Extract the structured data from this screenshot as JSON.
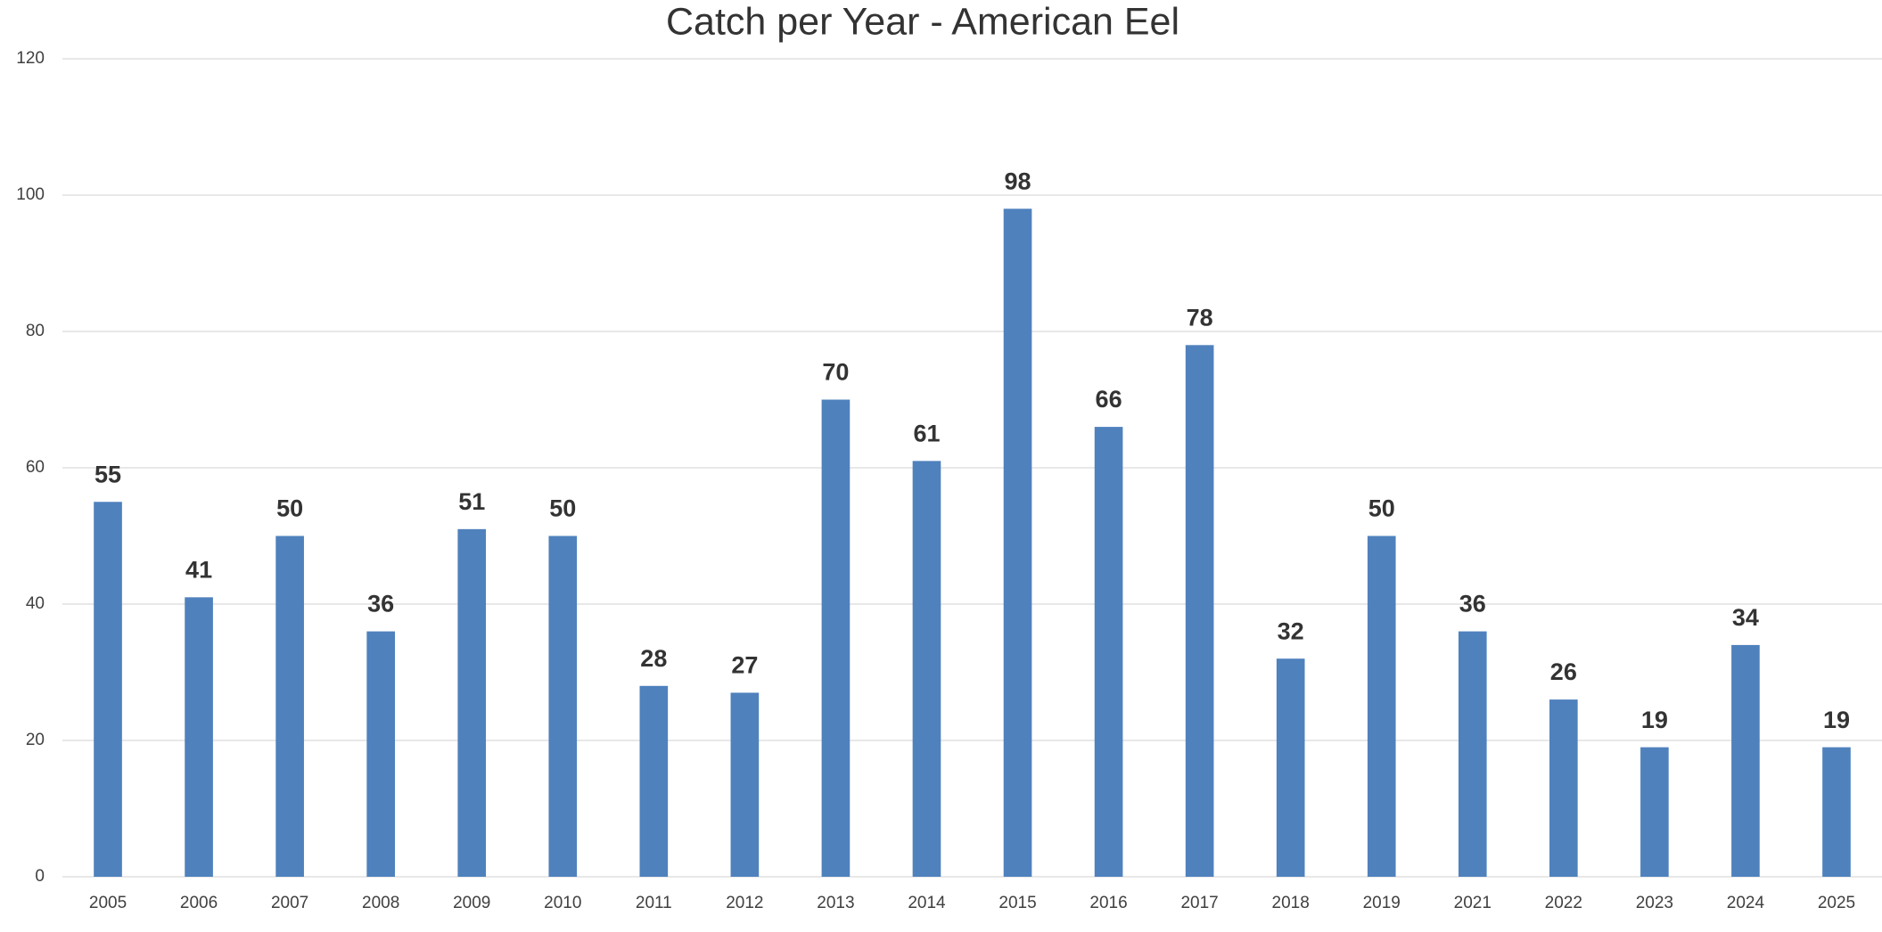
{
  "chart_data": {
    "type": "bar",
    "title": "Catch per Year - American Eel",
    "categories": [
      "2005",
      "2006",
      "2007",
      "2008",
      "2009",
      "2010",
      "2011",
      "2012",
      "2013",
      "2014",
      "2015",
      "2016",
      "2017",
      "2018",
      "2019",
      "2021",
      "2022",
      "2023",
      "2024",
      "2025"
    ],
    "values": [
      55,
      41,
      50,
      36,
      51,
      50,
      28,
      27,
      70,
      61,
      98,
      66,
      78,
      32,
      50,
      36,
      26,
      19,
      34,
      19
    ],
    "color": "#4f81bd",
    "ylim": [
      0,
      120
    ],
    "yticks": [
      0,
      20,
      40,
      60,
      80,
      100,
      120
    ],
    "grid": true,
    "data_labels": true
  }
}
